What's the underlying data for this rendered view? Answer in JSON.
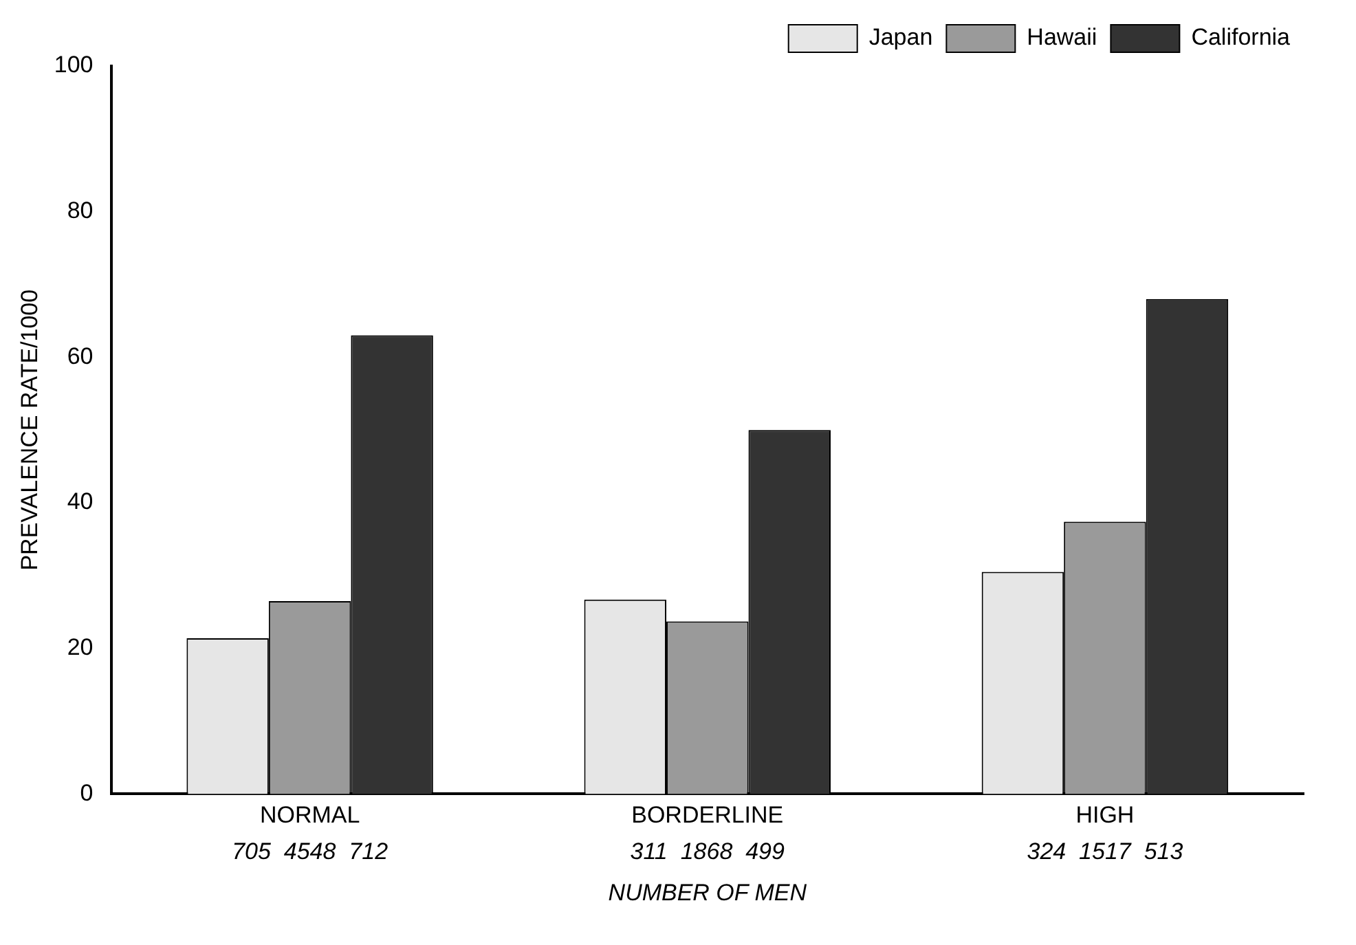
{
  "chart_data": {
    "type": "bar",
    "xlabel": "NUMBER OF MEN",
    "ylabel": "PREVALENCE RATE/1000",
    "categories": [
      "NORMAL",
      "BORDERLINE",
      "HIGH"
    ],
    "series": [
      {
        "name": "Japan",
        "color": "#e6e6e6",
        "values": [
          21.4,
          26.7,
          30.5
        ]
      },
      {
        "name": "Hawaii",
        "color": "#9a9a9a",
        "values": [
          26.5,
          23.7,
          37.4
        ]
      },
      {
        "name": "California",
        "color": "#333333",
        "values": [
          63,
          50,
          68
        ]
      }
    ],
    "ylim": [
      0,
      100
    ],
    "yticks": [
      0,
      20,
      40,
      60,
      80,
      100
    ],
    "grid": false,
    "legend": "top right",
    "annotations": [
      "705  4548  712",
      "311  1868  499",
      "324  1517  513"
    ]
  }
}
